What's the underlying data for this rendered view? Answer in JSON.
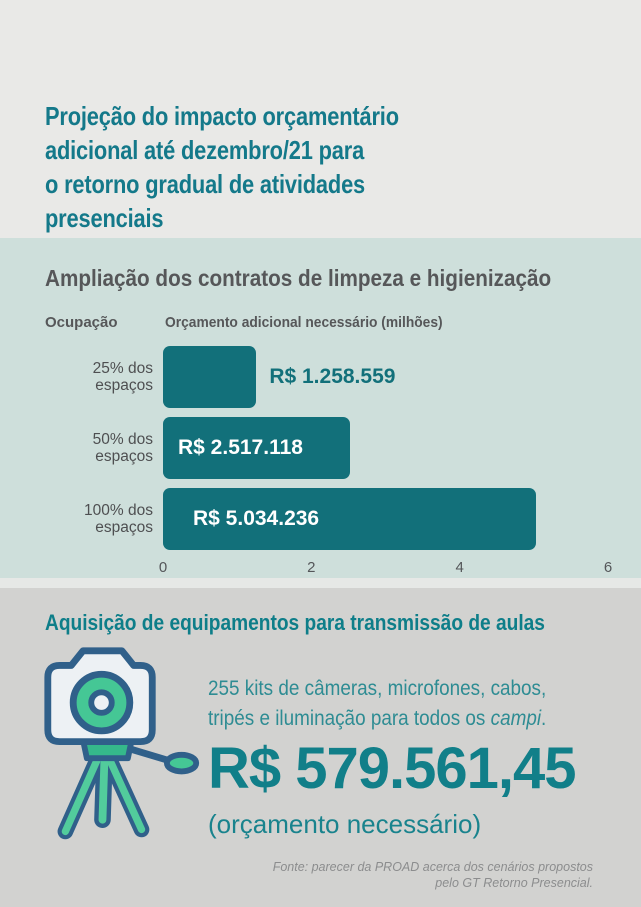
{
  "header": {
    "title_lines": [
      "Projeção do impacto orçamentário",
      "adicional até dezembro/21 para",
      "o retorno gradual de atividades",
      "presenciais"
    ]
  },
  "cleaning": {
    "heading": "Ampliação dos contratos de limpeza e higienização",
    "col_occupation": "Ocupação",
    "col_budget": "Orçamento adicional necessário (milhões)"
  },
  "chart_data": {
    "type": "bar",
    "orientation": "horizontal",
    "title": "Ampliação dos contratos de limpeza e higienização",
    "ylabel": "Ocupação",
    "xlabel": "Orçamento adicional necessário (milhões)",
    "categories": [
      "25% dos espaços",
      "50% dos espaços",
      "100% dos espaços"
    ],
    "values": [
      1.258559,
      2.517118,
      5.034236
    ],
    "value_labels": [
      "R$ 1.258.559",
      "R$ 2.517.118",
      "R$ 5.034.236"
    ],
    "xlim": [
      0,
      6
    ],
    "xticks": [
      0,
      2,
      4,
      6
    ],
    "grid": false,
    "legend": "none",
    "bar_color": "#12707a"
  },
  "equipment": {
    "heading": "Aquisição de equipamentos para transmissão de aulas",
    "icon": "camera-on-tripod-icon",
    "desc_line1": "255 kits de câmeras, microfones, cabos,",
    "desc_line2_prefix": "tripés e iluminação para todos os ",
    "desc_line2_italic": "campi",
    "desc_line2_suffix": ".",
    "price": "R$ 579.561,45",
    "price_caption": "(orçamento necessário)"
  },
  "footer": {
    "source_line1": "Fonte: parecer da PROAD acerca dos cenários propostos",
    "source_line2": "pelo GT Retorno Presencial."
  },
  "colors": {
    "background_top": "#e9e9e7",
    "background_chart_section": "#cedfdb",
    "background_equipment_section": "#d2d2d0",
    "title_teal": "#14798a",
    "bar_teal": "#12707a",
    "heading_gray": "#565759",
    "price_teal": "#117f89",
    "icon_green": "#45c795",
    "icon_outline_blue": "#30608a",
    "source_gray": "#8c8d8e"
  }
}
